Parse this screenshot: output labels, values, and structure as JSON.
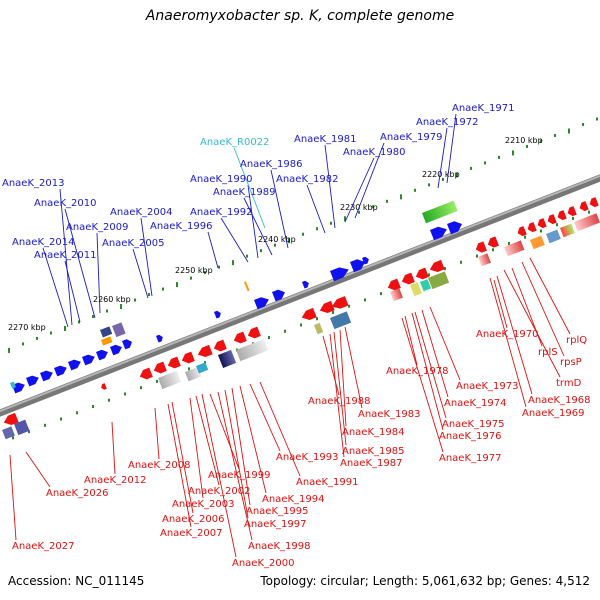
{
  "title": "Anaeromyxobacter sp. K, complete genome",
  "accession": "Accession: NC_011145",
  "stats": "Topology: circular; Length: 5,061,632 bp; Genes: 4,512",
  "colors": {
    "forward_label": "#1a1acc",
    "reverse_label": "#dd1111",
    "rna_label": "#33bbcc",
    "backbone": "#8a8a8a",
    "tick_dot": "#2a8a2a"
  },
  "ticks": [
    {
      "label": "2210 kbp"
    },
    {
      "label": "2220 kbp"
    },
    {
      "label": "2230 kbp"
    },
    {
      "label": "2240 kbp"
    },
    {
      "label": "2250 kbp"
    },
    {
      "label": "2260 kbp"
    },
    {
      "label": "2270 kbp"
    }
  ],
  "forward_genes": [
    "AnaeK_1971",
    "AnaeK_1972",
    "AnaeK_1979",
    "AnaeK_1980",
    "AnaeK_1981",
    "AnaeK_1982",
    "AnaeK_1986",
    "AnaeK_1989",
    "AnaeK_1990",
    "AnaeK_1992",
    "AnaeK_1996",
    "AnaeK_2004",
    "AnaeK_2005",
    "AnaeK_2009",
    "AnaeK_2010",
    "AnaeK_2011",
    "AnaeK_2013",
    "AnaeK_2014"
  ],
  "rna_genes": [
    "AnaeK_R0022"
  ],
  "reverse_genes": [
    "AnaeK_1970",
    "rplQ",
    "rplS",
    "rpsP",
    "trmD",
    "AnaeK_1968",
    "AnaeK_1969",
    "AnaeK_1978",
    "AnaeK_1973",
    "AnaeK_1974",
    "AnaeK_1975",
    "AnaeK_1976",
    "AnaeK_1977",
    "AnaeK_1983",
    "AnaeK_1984",
    "AnaeK_1985",
    "AnaeK_1987",
    "AnaeK_1988",
    "AnaeK_1991",
    "AnaeK_1993",
    "AnaeK_1994",
    "AnaeK_1995",
    "AnaeK_1997",
    "AnaeK_1998",
    "AnaeK_1999",
    "AnaeK_2000",
    "AnaeK_2002",
    "AnaeK_2003",
    "AnaeK_2006",
    "AnaeK_2007",
    "AnaeK_2008",
    "AnaeK_2012",
    "AnaeK_2026",
    "AnaeK_2027"
  ]
}
